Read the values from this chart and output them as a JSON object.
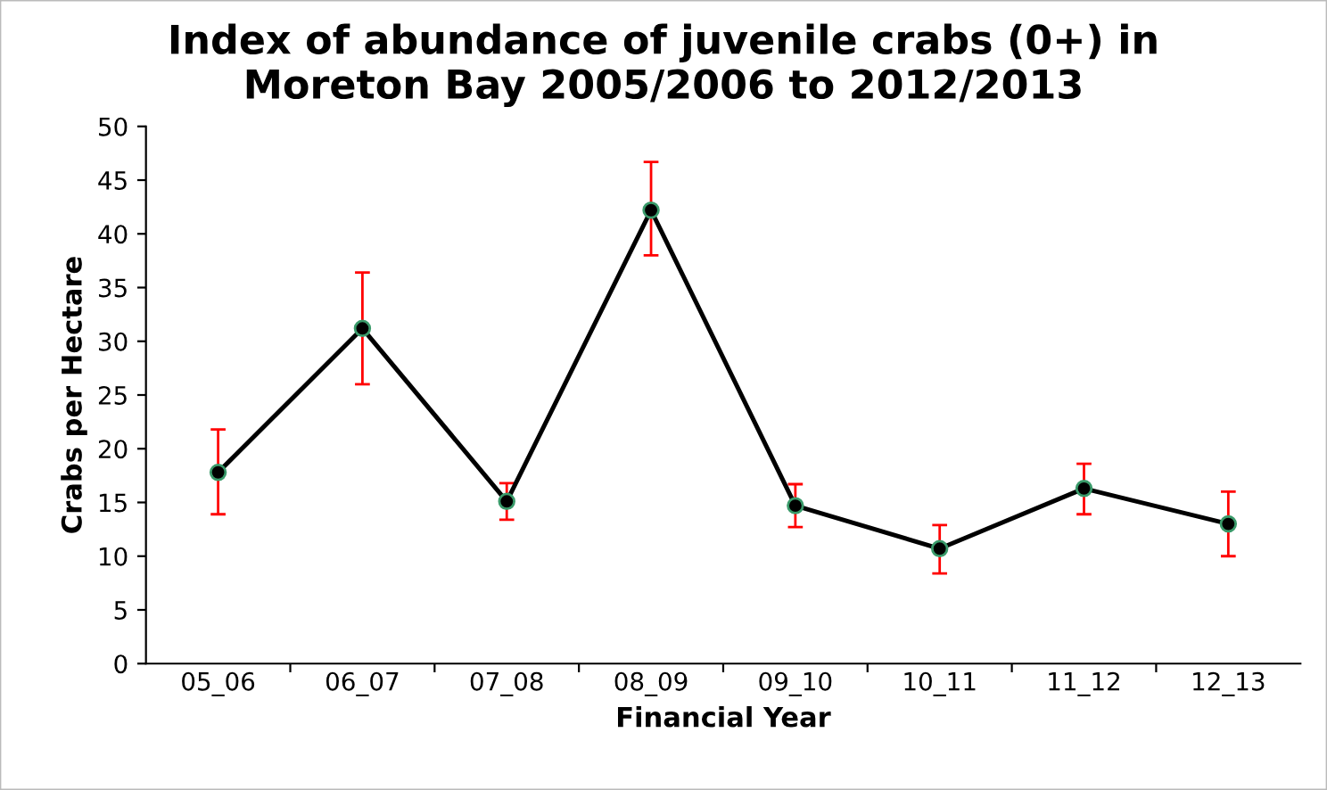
{
  "chart_data": {
    "type": "line",
    "title": "Index of abundance of juvenile crabs (0+) in\nMoreton Bay 2005/2006 to 2012/2013",
    "xlabel": "Financial Year",
    "ylabel": "Crabs per Hectare",
    "categories": [
      "05_06",
      "06_07",
      "07_08",
      "08_09",
      "09_10",
      "10_11",
      "11_12",
      "12_13"
    ],
    "series": [
      {
        "color": "#000000",
        "values": [
          17.8,
          31.2,
          15.1,
          42.2,
          14.7,
          10.7,
          16.3,
          13.0
        ],
        "errors": [
          [
            13.9,
            21.8
          ],
          [
            26.0,
            36.4
          ],
          [
            13.4,
            16.8
          ],
          [
            38.0,
            46.7
          ],
          [
            12.7,
            16.7
          ],
          [
            8.4,
            12.9
          ],
          [
            13.9,
            18.6
          ],
          [
            10.0,
            16.0
          ]
        ]
      }
    ],
    "ylim": [
      0,
      50
    ],
    "yticks": [
      0,
      5,
      10,
      15,
      20,
      25,
      30,
      35,
      40,
      45,
      50
    ],
    "marker": "circle",
    "line_style": "solid",
    "grid": false,
    "legend": false
  }
}
